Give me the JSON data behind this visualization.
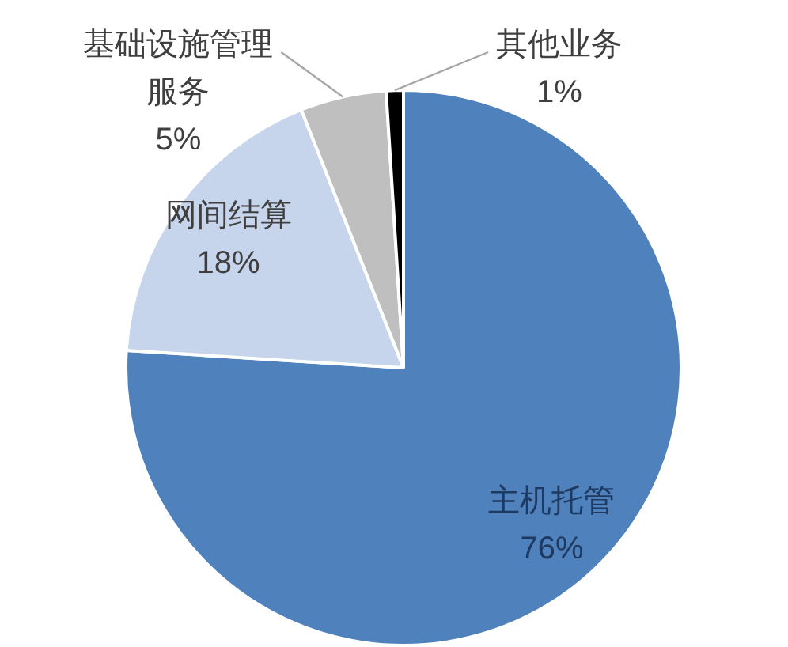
{
  "chart_data": {
    "type": "pie",
    "categories": [
      "主机托管",
      "网间结算",
      "基础设施管理服务",
      "其他业务"
    ],
    "values": [
      76,
      18,
      5,
      1
    ],
    "colors": [
      "#4f81bd",
      "#c6d5ec",
      "#bfbfbf",
      "#000000"
    ],
    "value_labels": [
      "76%",
      "18%",
      "5%",
      "1%"
    ]
  }
}
